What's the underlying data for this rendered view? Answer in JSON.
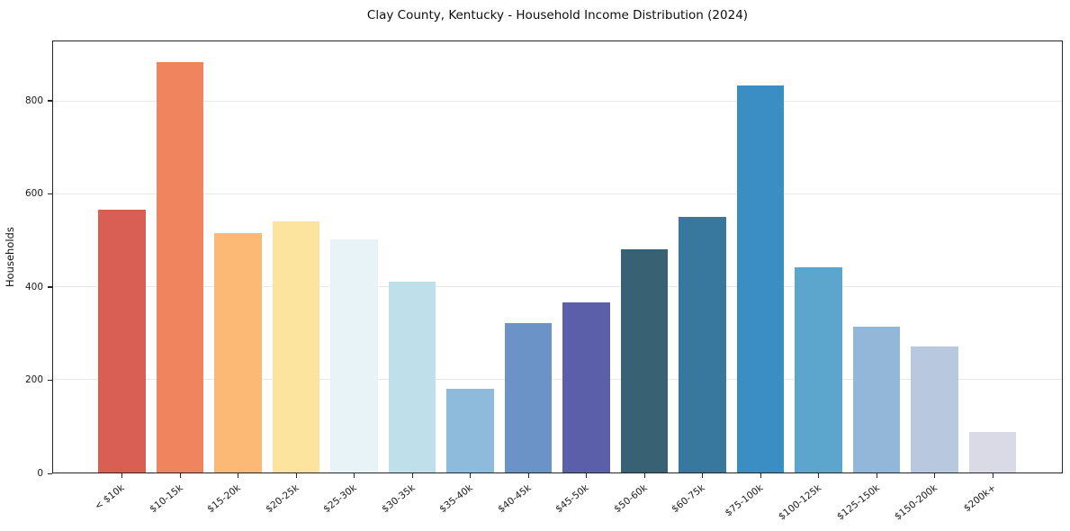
{
  "chart_data": {
    "type": "bar",
    "title": "Clay County, Kentucky - Household Income Distribution (2024)",
    "xlabel": "",
    "ylabel": "Households",
    "categories": [
      "< $10k",
      "$10-15k",
      "$15-20k",
      "$20-25k",
      "$25-30k",
      "$30-35k",
      "$35-40k",
      "$40-45k",
      "$45-50k",
      "$50-60k",
      "$60-75k",
      "$75-100k",
      "$100-125k",
      "$125-150k",
      "$150-200k",
      "$200k+"
    ],
    "values": [
      568,
      885,
      517,
      542,
      504,
      412,
      181,
      322,
      367,
      481,
      552,
      836,
      443,
      314,
      272,
      88
    ],
    "bar_colors": [
      "#d95f54",
      "#f0845f",
      "#fcb976",
      "#fde49e",
      "#e7f3f7",
      "#bfdfeb",
      "#8ebbdc",
      "#6b93c8",
      "#5b5ea9",
      "#386273",
      "#38789e",
      "#3a8ec3",
      "#5ca6cd",
      "#92b7d9",
      "#b7c8df",
      "#d9dae5"
    ],
    "yticks": [
      0,
      200,
      400,
      600,
      800
    ],
    "ylim": [
      0,
      929
    ],
    "grid": "horizontal",
    "legend": "none",
    "gridline_color": "#e8e8ea",
    "spine_color": "#262626",
    "background_color": "#ffffff"
  }
}
